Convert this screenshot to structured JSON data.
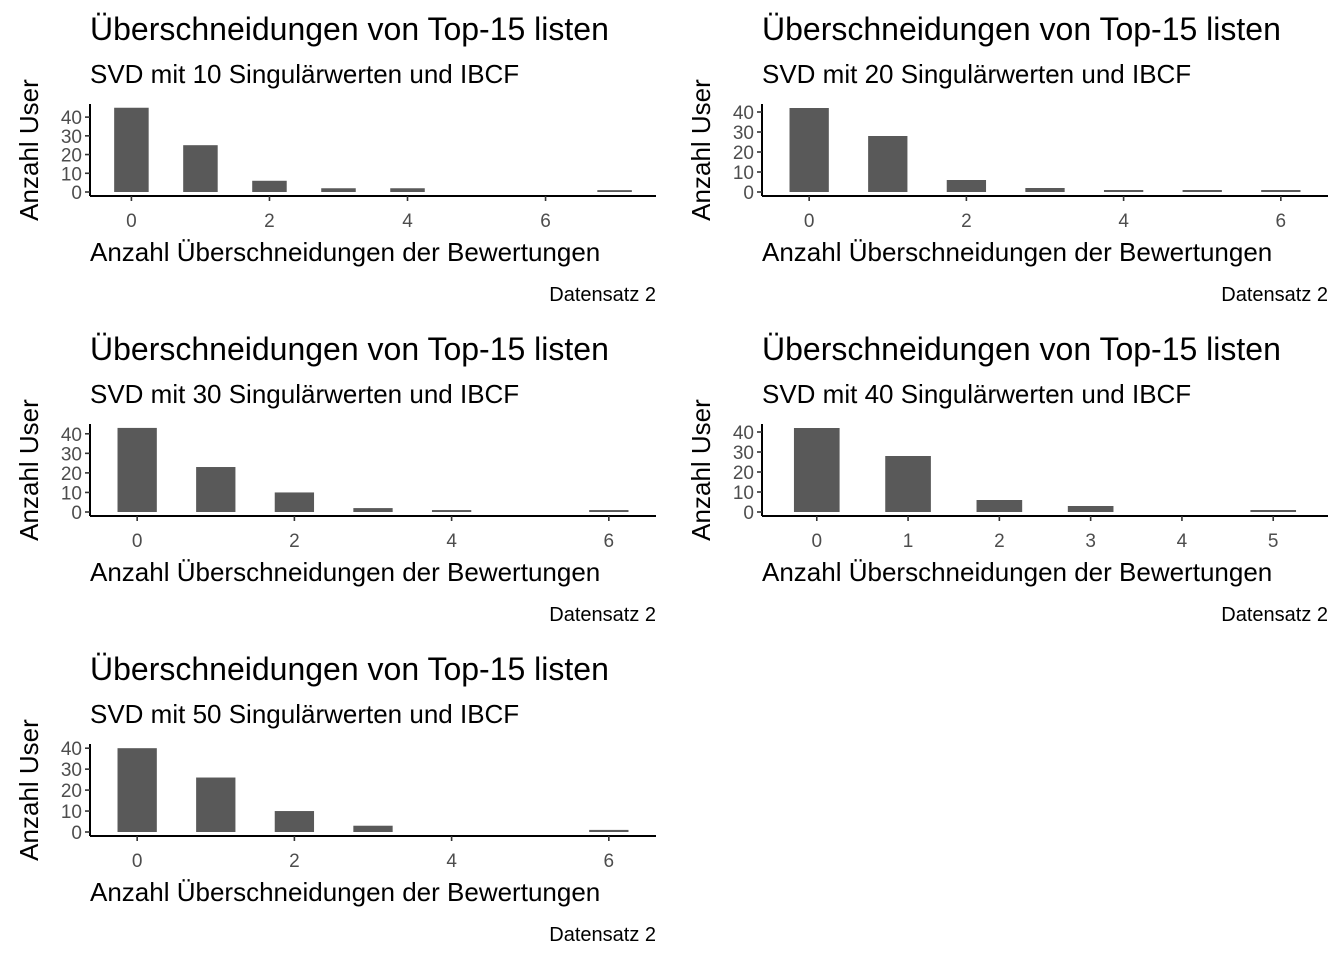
{
  "chart_data": [
    {
      "type": "bar",
      "title": "Überschneidungen von Top-15 listen",
      "subtitle": "SVD mit  10  Singulärwerten und IBCF",
      "xlabel": "Anzahl Überschneidungen der Bewertungen",
      "ylabel": "Anzahl User",
      "caption": "Datensatz 2",
      "x": [
        0,
        1,
        2,
        3,
        4,
        7
      ],
      "values": [
        45,
        25,
        6,
        2,
        2,
        1
      ],
      "xticks": [
        0,
        2,
        4,
        6
      ],
      "yticks": [
        0,
        10,
        20,
        30,
        40
      ],
      "xlim": [
        -0.6,
        7.6
      ],
      "ylim": [
        0,
        47
      ],
      "grid": false
    },
    {
      "type": "bar",
      "title": "Überschneidungen von Top-15 listen",
      "subtitle": "SVD mit  20  Singulärwerten und IBCF",
      "xlabel": "Anzahl Überschneidungen der Bewertungen",
      "ylabel": "Anzahl User",
      "caption": "Datensatz 2",
      "x": [
        0,
        1,
        2,
        3,
        4,
        5,
        6
      ],
      "values": [
        42,
        28,
        6,
        2,
        1,
        1,
        1
      ],
      "xticks": [
        0,
        2,
        4,
        6
      ],
      "yticks": [
        0,
        10,
        20,
        30,
        40
      ],
      "xlim": [
        -0.6,
        6.6
      ],
      "ylim": [
        0,
        44
      ],
      "grid": false
    },
    {
      "type": "bar",
      "title": "Überschneidungen von Top-15 listen",
      "subtitle": "SVD mit  30  Singulärwerten und IBCF",
      "xlabel": "Anzahl Überschneidungen der Bewertungen",
      "ylabel": "Anzahl User",
      "caption": "Datensatz 2",
      "x": [
        0,
        1,
        2,
        3,
        4,
        6
      ],
      "values": [
        43,
        23,
        10,
        2,
        1,
        1
      ],
      "xticks": [
        0,
        2,
        4,
        6
      ],
      "yticks": [
        0,
        10,
        20,
        30,
        40
      ],
      "xlim": [
        -0.6,
        6.6
      ],
      "ylim": [
        0,
        45
      ],
      "grid": false
    },
    {
      "type": "bar",
      "title": "Überschneidungen von Top-15 listen",
      "subtitle": "SVD mit  40  Singulärwerten und IBCF",
      "xlabel": "Anzahl Überschneidungen der Bewertungen",
      "ylabel": "Anzahl User",
      "caption": "Datensatz 2",
      "x": [
        0,
        1,
        2,
        3,
        5
      ],
      "values": [
        42,
        28,
        6,
        3,
        1
      ],
      "xticks": [
        0,
        1,
        2,
        3,
        4,
        5
      ],
      "yticks": [
        0,
        10,
        20,
        30,
        40
      ],
      "xlim": [
        -0.6,
        5.6
      ],
      "ylim": [
        0,
        44
      ],
      "grid": false
    },
    {
      "type": "bar",
      "title": "Überschneidungen von Top-15 listen",
      "subtitle": "SVD mit  50  Singulärwerten und IBCF",
      "xlabel": "Anzahl Überschneidungen der Bewertungen",
      "ylabel": "Anzahl User",
      "caption": "Datensatz 2",
      "x": [
        0,
        1,
        2,
        3,
        6
      ],
      "values": [
        40,
        26,
        10,
        3,
        1
      ],
      "xticks": [
        0,
        2,
        4,
        6
      ],
      "yticks": [
        0,
        10,
        20,
        30,
        40
      ],
      "xlim": [
        -0.6,
        6.6
      ],
      "ylim": [
        0,
        42
      ],
      "grid": false
    }
  ]
}
